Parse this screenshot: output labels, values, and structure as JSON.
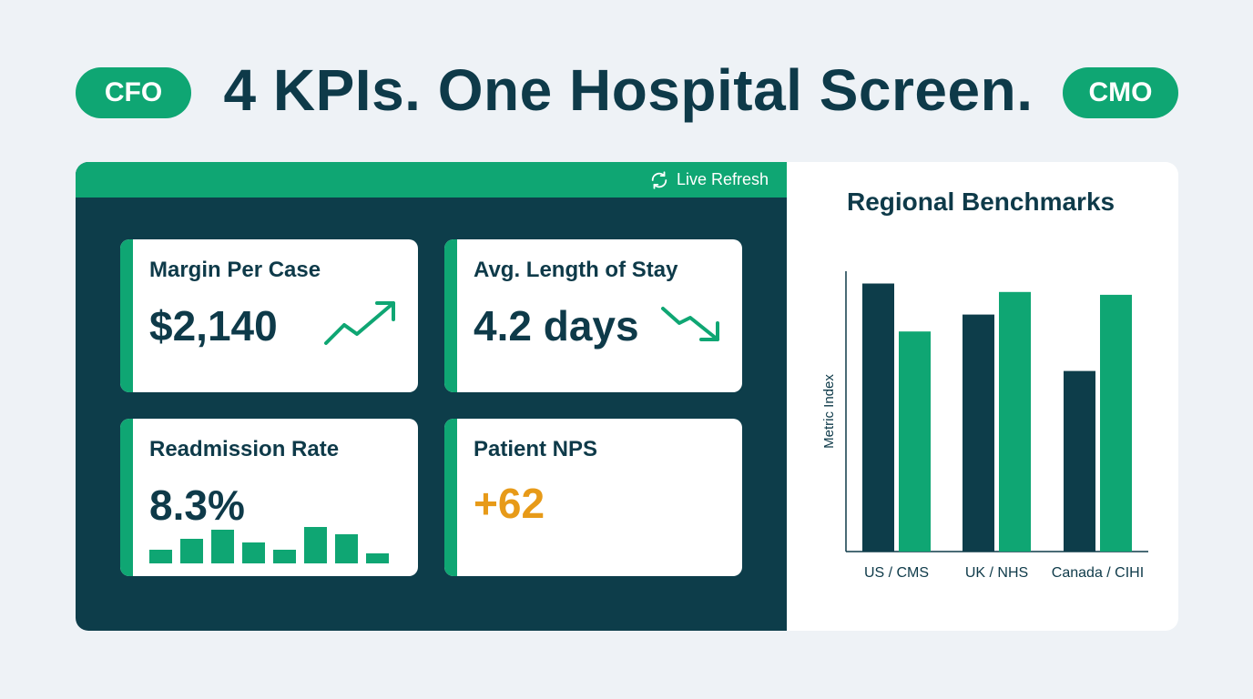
{
  "header": {
    "left_badge": "CFO",
    "title": "4 KPIs. One Hospital Screen.",
    "right_badge": "CMO"
  },
  "toolbar": {
    "refresh_label": "Live Refresh",
    "refresh_icon": "refresh-icon"
  },
  "kpis": {
    "margin": {
      "label": "Margin Per Case",
      "value": "$2,140",
      "trend_icon": "trend-up-icon"
    },
    "los": {
      "label": "Avg. Length of Stay",
      "value": "4.2 days",
      "trend_icon": "trend-down-icon"
    },
    "readmission": {
      "label": "Readmission Rate",
      "value": "8.3%",
      "sparkline": [
        0.35,
        0.62,
        0.85,
        0.52,
        0.35,
        0.92,
        0.72,
        0.25
      ]
    },
    "nps": {
      "label": "Patient NPS",
      "value": "+62"
    }
  },
  "colors": {
    "dark": "#0d3d4a",
    "green": "#0fa673",
    "orange": "#e79a18",
    "background": "#eef2f6"
  },
  "chart_data": {
    "type": "bar",
    "title": "Regional Benchmarks",
    "ylabel": "Metric Index",
    "xlabel": "",
    "categories": [
      "US / CMS",
      "UK / NHS",
      "Canada / CIHI"
    ],
    "series": [
      {
        "values": [
          95,
          84,
          64
        ],
        "color": "#0d3d4a"
      },
      {
        "values": [
          78,
          92,
          91
        ],
        "color": "#0fa673"
      }
    ],
    "ylim": [
      0,
      100
    ],
    "grid": false,
    "legend": "none"
  }
}
